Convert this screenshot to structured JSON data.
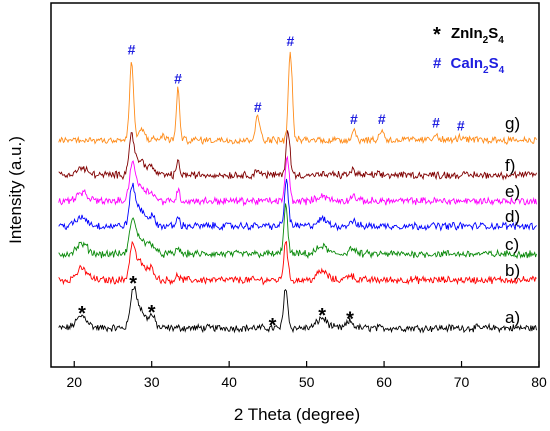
{
  "chart_data": {
    "type": "line",
    "xlabel": "2 Theta (degree)",
    "ylabel": "Intensity (a.u.)",
    "xlim": [
      17,
      80
    ],
    "x_ticks": [
      20,
      30,
      40,
      50,
      60,
      70,
      80
    ],
    "y_ticks_visible": false,
    "grid": false,
    "legend": {
      "placement": "top-right",
      "entries": [
        {
          "symbol": "*",
          "label_main": "ZnIn",
          "sub1": "2",
          "mid": "S",
          "sub2": "4",
          "color": "#000000"
        },
        {
          "symbol": "#",
          "label_main": "CaIn",
          "sub1": "2",
          "mid": "S",
          "sub2": "4",
          "color": "#1f1fe0"
        }
      ]
    },
    "series": [
      {
        "label": "a)",
        "color": "#000000",
        "peaks": [
          {
            "x": 21.0,
            "h": 1.1,
            "w": 1.0
          },
          {
            "x": 27.6,
            "h": 3.0,
            "w": 0.5
          },
          {
            "x": 28.4,
            "h": 1.8,
            "w": 0.9
          },
          {
            "x": 30.0,
            "h": 1.1,
            "w": 0.6
          },
          {
            "x": 47.3,
            "h": 3.8,
            "w": 0.35
          },
          {
            "x": 52.0,
            "h": 0.9,
            "w": 0.9
          },
          {
            "x": 55.6,
            "h": 0.6,
            "w": 0.6
          }
        ]
      },
      {
        "label": "b)",
        "color": "#ff0000",
        "peaks": [
          {
            "x": 21.0,
            "h": 1.0,
            "w": 1.0
          },
          {
            "x": 27.5,
            "h": 2.9,
            "w": 0.5
          },
          {
            "x": 28.5,
            "h": 1.6,
            "w": 0.9
          },
          {
            "x": 30.0,
            "h": 1.0,
            "w": 0.6
          },
          {
            "x": 33.4,
            "h": 0.4,
            "w": 0.3
          },
          {
            "x": 47.3,
            "h": 3.6,
            "w": 0.35
          },
          {
            "x": 52.0,
            "h": 0.8,
            "w": 0.9
          },
          {
            "x": 55.6,
            "h": 0.5,
            "w": 0.6
          }
        ]
      },
      {
        "label": "c)",
        "color": "#0a8a0a",
        "peaks": [
          {
            "x": 21.0,
            "h": 0.9,
            "w": 1.0
          },
          {
            "x": 27.5,
            "h": 2.9,
            "w": 0.5
          },
          {
            "x": 28.5,
            "h": 1.5,
            "w": 0.9
          },
          {
            "x": 30.0,
            "h": 0.9,
            "w": 0.6
          },
          {
            "x": 33.4,
            "h": 0.6,
            "w": 0.3
          },
          {
            "x": 47.3,
            "h": 4.4,
            "w": 0.35
          },
          {
            "x": 52.0,
            "h": 0.7,
            "w": 0.9
          },
          {
            "x": 55.8,
            "h": 0.5,
            "w": 0.6
          }
        ]
      },
      {
        "label": "d)",
        "color": "#0000ff",
        "peaks": [
          {
            "x": 21.0,
            "h": 0.8,
            "w": 1.0
          },
          {
            "x": 27.5,
            "h": 3.3,
            "w": 0.5
          },
          {
            "x": 28.5,
            "h": 1.5,
            "w": 0.9
          },
          {
            "x": 30.0,
            "h": 0.8,
            "w": 0.6
          },
          {
            "x": 33.4,
            "h": 0.8,
            "w": 0.3
          },
          {
            "x": 47.4,
            "h": 4.2,
            "w": 0.35
          },
          {
            "x": 52.0,
            "h": 0.6,
            "w": 0.9
          },
          {
            "x": 55.9,
            "h": 0.5,
            "w": 0.5
          }
        ]
      },
      {
        "label": "e)",
        "color": "#ff00ff",
        "peaks": [
          {
            "x": 21.0,
            "h": 0.7,
            "w": 1.0
          },
          {
            "x": 27.5,
            "h": 3.4,
            "w": 0.5
          },
          {
            "x": 28.6,
            "h": 1.4,
            "w": 0.9
          },
          {
            "x": 30.0,
            "h": 0.7,
            "w": 0.6
          },
          {
            "x": 33.4,
            "h": 1.0,
            "w": 0.3
          },
          {
            "x": 47.5,
            "h": 4.1,
            "w": 0.35
          },
          {
            "x": 52.0,
            "h": 0.5,
            "w": 0.9
          },
          {
            "x": 56.0,
            "h": 0.5,
            "w": 0.5
          }
        ]
      },
      {
        "label": "f)",
        "color": "#800000",
        "peaks": [
          {
            "x": 21.0,
            "h": 0.6,
            "w": 1.0
          },
          {
            "x": 27.4,
            "h": 3.5,
            "w": 0.5
          },
          {
            "x": 28.6,
            "h": 1.3,
            "w": 0.9
          },
          {
            "x": 30.0,
            "h": 0.6,
            "w": 0.6
          },
          {
            "x": 33.4,
            "h": 1.2,
            "w": 0.3
          },
          {
            "x": 43.7,
            "h": 0.4,
            "w": 0.5
          },
          {
            "x": 47.6,
            "h": 4.1,
            "w": 0.35
          },
          {
            "x": 56.0,
            "h": 0.4,
            "w": 0.5
          }
        ]
      },
      {
        "label": "g)",
        "color": "#ff8c1a",
        "peaks": [
          {
            "x": 27.4,
            "h": 7.2,
            "w": 0.35
          },
          {
            "x": 28.7,
            "h": 0.9,
            "w": 0.6
          },
          {
            "x": 31.5,
            "h": 0.3,
            "w": 0.6
          },
          {
            "x": 33.4,
            "h": 4.6,
            "w": 0.3
          },
          {
            "x": 43.7,
            "h": 2.0,
            "w": 0.45
          },
          {
            "x": 47.9,
            "h": 8.0,
            "w": 0.35
          },
          {
            "x": 56.1,
            "h": 0.9,
            "w": 0.4
          },
          {
            "x": 59.7,
            "h": 0.9,
            "w": 0.4
          },
          {
            "x": 66.7,
            "h": 0.6,
            "w": 0.4
          },
          {
            "x": 69.9,
            "h": 0.3,
            "w": 0.4
          }
        ]
      }
    ],
    "annotations": [
      {
        "symbol": "*",
        "x": 21.0,
        "series": "a)"
      },
      {
        "symbol": "*",
        "x": 27.6,
        "series": "a)"
      },
      {
        "symbol": "*",
        "x": 30.0,
        "series": "a)"
      },
      {
        "symbol": "*",
        "x": 45.6,
        "series": "a)"
      },
      {
        "symbol": "*",
        "x": 52.0,
        "series": "a)"
      },
      {
        "symbol": "*",
        "x": 55.6,
        "series": "a)"
      },
      {
        "symbol": "#",
        "x": 27.4,
        "series": "g)"
      },
      {
        "symbol": "#",
        "x": 33.4,
        "series": "g)"
      },
      {
        "symbol": "#",
        "x": 43.7,
        "series": "g)"
      },
      {
        "symbol": "#",
        "x": 47.9,
        "series": "g)"
      },
      {
        "symbol": "#",
        "x": 56.1,
        "series": "g)"
      },
      {
        "symbol": "#",
        "x": 59.7,
        "series": "g)"
      },
      {
        "symbol": "#",
        "x": 66.7,
        "series": "g)"
      },
      {
        "symbol": "#",
        "x": 69.9,
        "series": "g)"
      }
    ]
  }
}
